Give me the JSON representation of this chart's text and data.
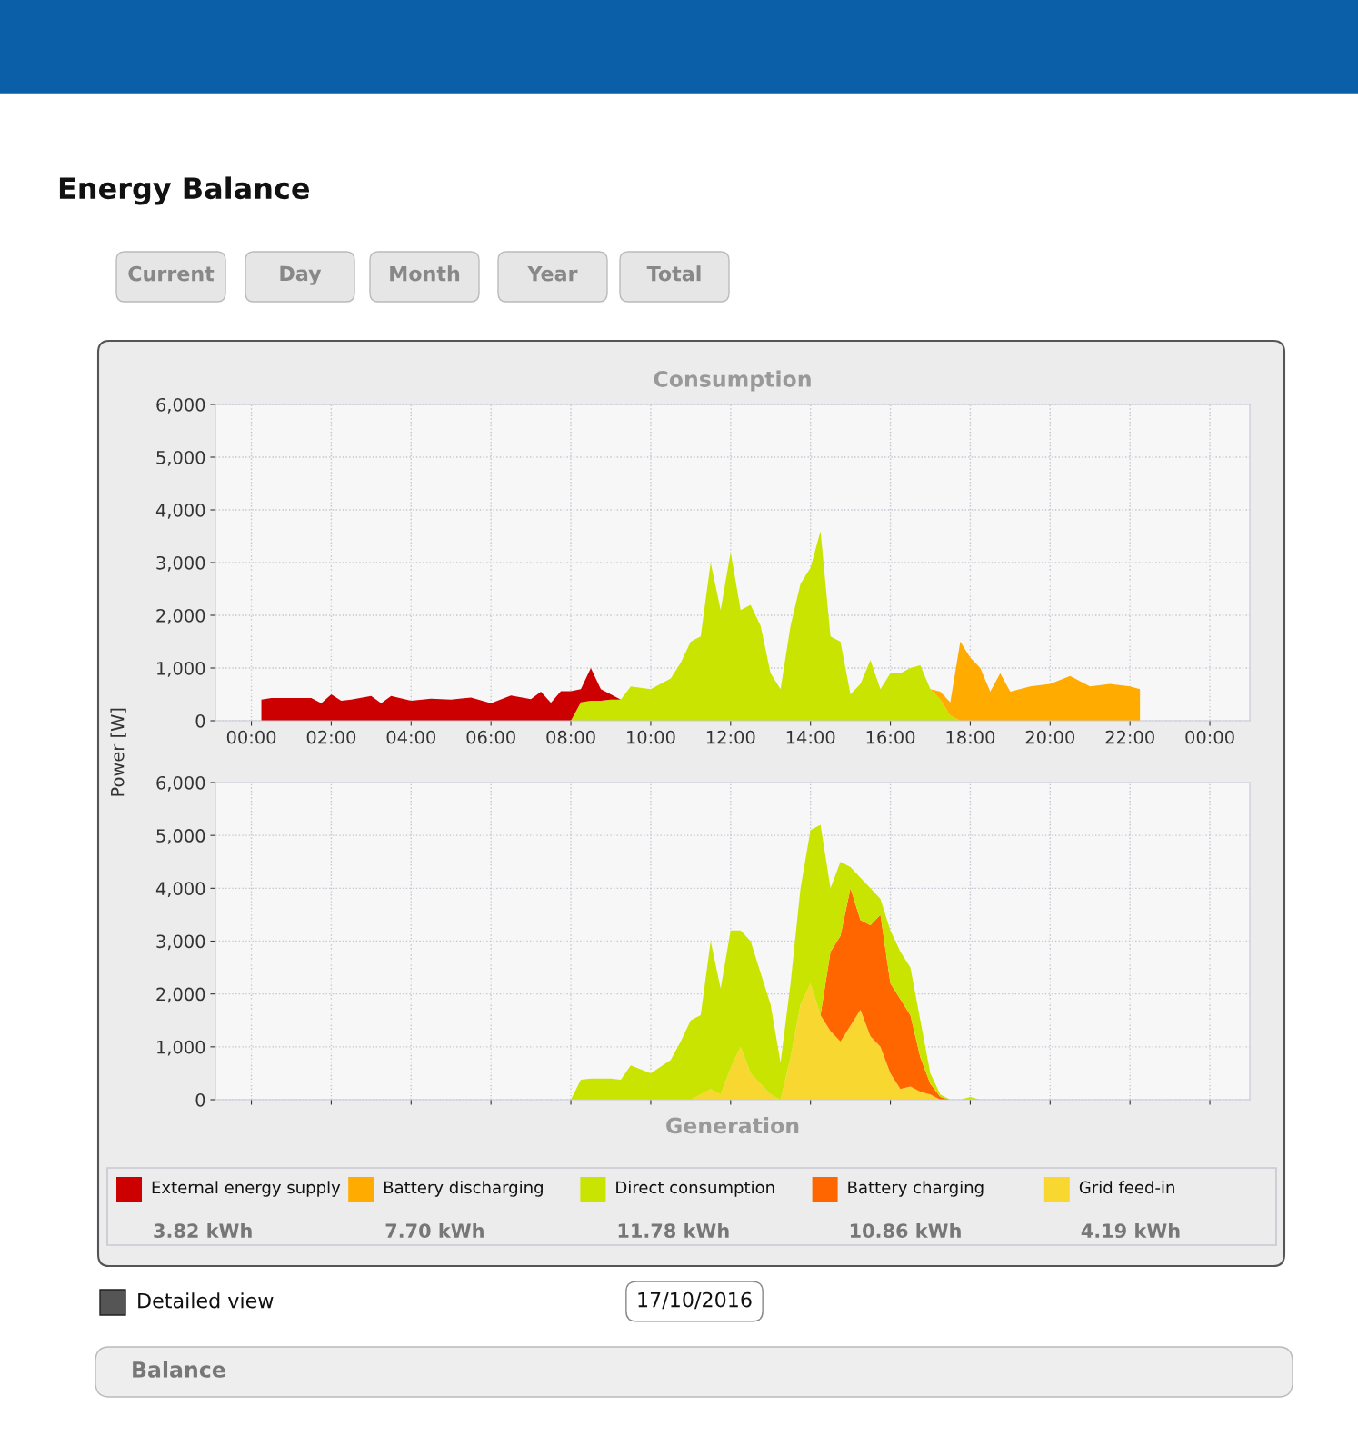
{
  "chart_data": [
    {
      "type": "other",
      "title": "Energy Balance",
      "annotations": [
        "Current",
        "Day",
        "Month",
        "Year",
        "Total",
        "Detailed view",
        "17/10/2016",
        "Balance"
      ]
    },
    {
      "type": "area",
      "stacked": true,
      "title": "Consumption",
      "ylabel": "Power [W]",
      "legend": "bottom",
      "grid": true,
      "xlim": [
        -0.9,
        25
      ],
      "ylim": [
        0,
        6000
      ],
      "xticks": [
        {
          "value": 0,
          "label": "00:00"
        },
        {
          "value": 2,
          "label": "02:00"
        },
        {
          "value": 4,
          "label": "04:00"
        },
        {
          "value": 6,
          "label": "06:00"
        },
        {
          "value": 8,
          "label": "08:00"
        },
        {
          "value": 10,
          "label": "10:00"
        },
        {
          "value": 12,
          "label": "12:00"
        },
        {
          "value": 14,
          "label": "14:00"
        },
        {
          "value": 16,
          "label": "16:00"
        },
        {
          "value": 18,
          "label": "18:00"
        },
        {
          "value": 20,
          "label": "20:00"
        },
        {
          "value": 22,
          "label": "22:00"
        },
        {
          "value": 24,
          "label": "00:00"
        }
      ],
      "yticks": [
        0,
        {
          "value": 1000,
          "label": "1,000"
        },
        {
          "value": 2000,
          "label": "2,000"
        },
        {
          "value": 3000,
          "label": "3,000"
        },
        {
          "value": 4000,
          "label": "4,000"
        },
        {
          "value": 5000,
          "label": "5,000"
        },
        {
          "value": 6000,
          "label": "6,000"
        }
      ],
      "x": [
        0.25,
        0.5,
        1,
        1.5,
        1.75,
        2,
        2.25,
        2.5,
        3,
        3.25,
        3.5,
        4,
        4.5,
        5,
        5.5,
        6,
        6.5,
        7,
        7.25,
        7.5,
        7.75,
        8,
        8.25,
        8.5,
        8.75,
        9,
        9.25,
        9.5,
        10,
        10.5,
        10.75,
        11,
        11.25,
        11.5,
        11.75,
        12,
        12.25,
        12.5,
        12.75,
        13,
        13.25,
        13.5,
        13.75,
        14,
        14.25,
        14.5,
        14.75,
        15,
        15.25,
        15.5,
        15.75,
        16,
        16.25,
        16.5,
        16.75,
        17,
        17.25,
        17.5,
        17.75,
        18,
        18.25,
        18.5,
        18.75,
        19,
        19.5,
        20,
        20.5,
        21,
        21.5,
        22,
        22.25
      ],
      "series": [
        {
          "name": "Direct consumption",
          "color": "#c8e400",
          "values": [
            0,
            0,
            0,
            0,
            0,
            0,
            0,
            0,
            0,
            0,
            0,
            0,
            0,
            0,
            0,
            0,
            0,
            0,
            0,
            0,
            0,
            0,
            350,
            380,
            380,
            400,
            400,
            650,
            600,
            800,
            1100,
            1500,
            1600,
            3000,
            2100,
            3200,
            2100,
            2200,
            1800,
            900,
            600,
            1800,
            2600,
            2900,
            3600,
            1600,
            1500,
            500,
            700,
            1150,
            600,
            900,
            900,
            1000,
            1050,
            600,
            400,
            100,
            0,
            0,
            0,
            0,
            0,
            0,
            0,
            0,
            0,
            0,
            0,
            0,
            0
          ]
        },
        {
          "name": "Battery discharging",
          "color": "#ffab00",
          "values": [
            null,
            null,
            null,
            null,
            null,
            null,
            null,
            null,
            null,
            null,
            null,
            null,
            null,
            null,
            null,
            null,
            null,
            null,
            null,
            null,
            null,
            null,
            null,
            null,
            null,
            null,
            null,
            null,
            null,
            null,
            null,
            null,
            null,
            null,
            null,
            null,
            null,
            null,
            null,
            null,
            null,
            null,
            null,
            null,
            null,
            null,
            null,
            null,
            null,
            null,
            null,
            null,
            null,
            null,
            null,
            0,
            150,
            250,
            1500,
            1200,
            1000,
            550,
            900,
            550,
            650,
            700,
            850,
            650,
            700,
            650,
            600
          ]
        },
        {
          "name": "External energy supply",
          "color": "#cc0000",
          "values": [
            400,
            430,
            430,
            430,
            330,
            500,
            380,
            400,
            470,
            330,
            470,
            380,
            420,
            400,
            440,
            330,
            480,
            410,
            550,
            340,
            560,
            560,
            250,
            620,
            220,
            100,
            0,
            null,
            null,
            null,
            null,
            null,
            null,
            null,
            null,
            null,
            null,
            null,
            null,
            null,
            null,
            null,
            null,
            null,
            null,
            null,
            null,
            null,
            null,
            null,
            null,
            null,
            null,
            null,
            null,
            null,
            null,
            null,
            null,
            null,
            null,
            null,
            null,
            null,
            null,
            null,
            null,
            null,
            null,
            null,
            null
          ]
        }
      ],
      "annotations": [
        "3.82 kWh",
        "7.70 kWh",
        "11.78 kWh"
      ]
    },
    {
      "type": "area",
      "stacked": true,
      "title": "Generation",
      "legend": "bottom",
      "grid": true,
      "tick_labels": "y",
      "xlim": [
        -0.9,
        25
      ],
      "ylim": [
        0,
        6000
      ],
      "xticks": [
        {
          "value": 0,
          "label": null
        },
        {
          "value": 2,
          "label": null
        },
        {
          "value": 4,
          "label": null
        },
        {
          "value": 6,
          "label": null
        },
        {
          "value": 8,
          "label": null
        },
        {
          "value": 10,
          "label": null
        },
        {
          "value": 12,
          "label": null
        },
        {
          "value": 14,
          "label": null
        },
        {
          "value": 16,
          "label": null
        },
        {
          "value": 18,
          "label": null
        },
        {
          "value": 20,
          "label": null
        },
        {
          "value": 22,
          "label": null
        },
        {
          "value": 24,
          "label": null
        }
      ],
      "yticks": [
        0,
        {
          "value": 1000,
          "label": "1,000"
        },
        {
          "value": 2000,
          "label": "2,000"
        },
        {
          "value": 3000,
          "label": "3,000"
        },
        {
          "value": 4000,
          "label": "4,000"
        },
        {
          "value": 5000,
          "label": "5,000"
        },
        {
          "value": 6000,
          "label": "6,000"
        }
      ],
      "x": [
        0.25,
        0.5,
        1,
        1.5,
        1.75,
        2,
        2.25,
        2.5,
        3,
        3.25,
        3.5,
        4,
        4.5,
        5,
        5.5,
        6,
        6.5,
        7,
        7.25,
        7.5,
        7.75,
        8,
        8.25,
        8.5,
        8.75,
        9,
        9.25,
        9.5,
        10,
        10.5,
        10.75,
        11,
        11.25,
        11.5,
        11.75,
        12,
        12.25,
        12.5,
        12.75,
        13,
        13.25,
        13.5,
        13.75,
        14,
        14.25,
        14.5,
        14.75,
        15,
        15.25,
        15.5,
        15.75,
        16,
        16.25,
        16.5,
        16.75,
        17,
        17.25,
        17.5,
        17.75,
        18,
        18.25,
        18.5,
        18.75,
        19,
        19.5,
        20,
        20.5,
        21,
        21.5,
        22,
        22.25
      ],
      "series": [
        {
          "name": "Grid feed-in",
          "color": "#f8d830",
          "values": [
            0,
            0,
            0,
            0,
            0,
            0,
            0,
            0,
            0,
            0,
            0,
            0,
            0,
            0,
            0,
            0,
            0,
            0,
            0,
            0,
            0,
            0,
            0,
            0,
            0,
            0,
            0,
            0,
            0,
            0,
            0,
            0,
            100,
            200,
            100,
            600,
            1000,
            500,
            300,
            100,
            0,
            800,
            1800,
            2200,
            1600,
            1300,
            1100,
            1400,
            1700,
            1200,
            1000,
            500,
            200,
            250,
            150,
            100,
            0,
            0,
            0,
            0,
            0,
            0,
            0,
            0,
            0,
            0,
            0,
            0,
            0,
            0,
            0
          ]
        },
        {
          "name": "Battery charging",
          "color": "#ff6600",
          "values": [
            0,
            0,
            0,
            0,
            0,
            0,
            0,
            0,
            0,
            0,
            0,
            0,
            0,
            0,
            0,
            0,
            0,
            0,
            0,
            0,
            0,
            0,
            0,
            0,
            0,
            0,
            0,
            0,
            0,
            0,
            0,
            0,
            0,
            0,
            0,
            0,
            0,
            0,
            0,
            0,
            0,
            0,
            0,
            0,
            0,
            1500,
            2000,
            2600,
            1700,
            2100,
            2500,
            1700,
            1700,
            1350,
            650,
            200,
            50,
            0,
            0,
            0,
            0,
            0,
            0,
            0,
            0,
            0,
            0,
            0,
            0,
            0,
            0
          ]
        },
        {
          "color": "#c8e400",
          "values": [
            0,
            0,
            0,
            0,
            0,
            0,
            0,
            0,
            0,
            0,
            0,
            0,
            0,
            0,
            0,
            0,
            0,
            0,
            0,
            0,
            0,
            0,
            380,
            400,
            400,
            400,
            380,
            650,
            500,
            750,
            1100,
            1500,
            1500,
            2800,
            2000,
            2600,
            2200,
            2500,
            2100,
            1700,
            700,
            1400,
            2200,
            2900,
            3600,
            1200,
            1400,
            400,
            800,
            700,
            300,
            1000,
            900,
            900,
            700,
            200,
            50,
            0,
            0,
            50,
            0,
            0,
            0,
            0,
            0,
            0,
            0,
            0,
            0,
            0,
            0
          ]
        }
      ],
      "annotations": [
        "10.86 kWh",
        "4.19 kWh"
      ]
    }
  ]
}
